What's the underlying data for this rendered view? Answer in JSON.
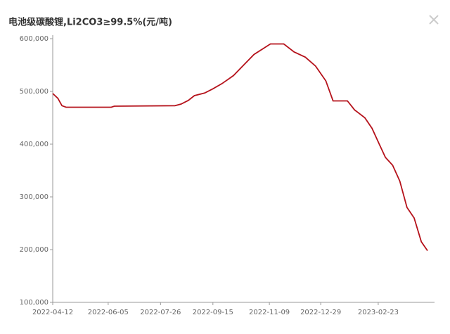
{
  "chart_data": {
    "type": "line",
    "title": "电池级碳酸锂,Li2CO3≥99.5%(元/吨)",
    "x": [
      "2022-04-12",
      "2022-04-17",
      "2022-04-21",
      "2022-04-25",
      "2022-06-08",
      "2022-06-11",
      "2022-08-09",
      "2022-08-15",
      "2022-08-22",
      "2022-08-28",
      "2022-09-07",
      "2022-09-15",
      "2022-09-24",
      "2022-10-05",
      "2022-10-15",
      "2022-10-25",
      "2022-11-10",
      "2022-11-23",
      "2022-12-03",
      "2022-12-14",
      "2022-12-24",
      "2023-01-03",
      "2023-01-10",
      "2023-01-24",
      "2023-01-31",
      "2023-02-10",
      "2023-02-17",
      "2023-02-24",
      "2023-03-02",
      "2023-03-09",
      "2023-03-16",
      "2023-03-23",
      "2023-03-30",
      "2023-04-06",
      "2023-04-12"
    ],
    "series": [
      {
        "name": "电池级碳酸锂",
        "color": "#b5121b",
        "values": [
          496000,
          487000,
          473000,
          470000,
          470000,
          472000,
          473000,
          476000,
          483000,
          492000,
          497000,
          505000,
          515000,
          530000,
          550000,
          570000,
          590000,
          590000,
          575000,
          565000,
          548000,
          520000,
          482000,
          482000,
          465000,
          450000,
          430000,
          400000,
          375000,
          360000,
          330000,
          280000,
          260000,
          215000,
          198000
        ]
      }
    ],
    "xlim": [
      "2022-04-12",
      "2023-04-12"
    ],
    "xticks": [
      "2022-04-12",
      "2022-06-05",
      "2022-07-26",
      "2022-09-15",
      "2022-11-09",
      "2022-12-29",
      "2023-02-23"
    ],
    "ylim": [
      100000,
      600000
    ],
    "yticks": [
      {
        "value": 100000,
        "label": "100,000"
      },
      {
        "value": 200000,
        "label": "200,000"
      },
      {
        "value": 300000,
        "label": "300,000"
      },
      {
        "value": 400000,
        "label": "400,000"
      },
      {
        "value": 500000,
        "label": "500,000"
      },
      {
        "value": 600000,
        "label": "600,000"
      }
    ]
  }
}
